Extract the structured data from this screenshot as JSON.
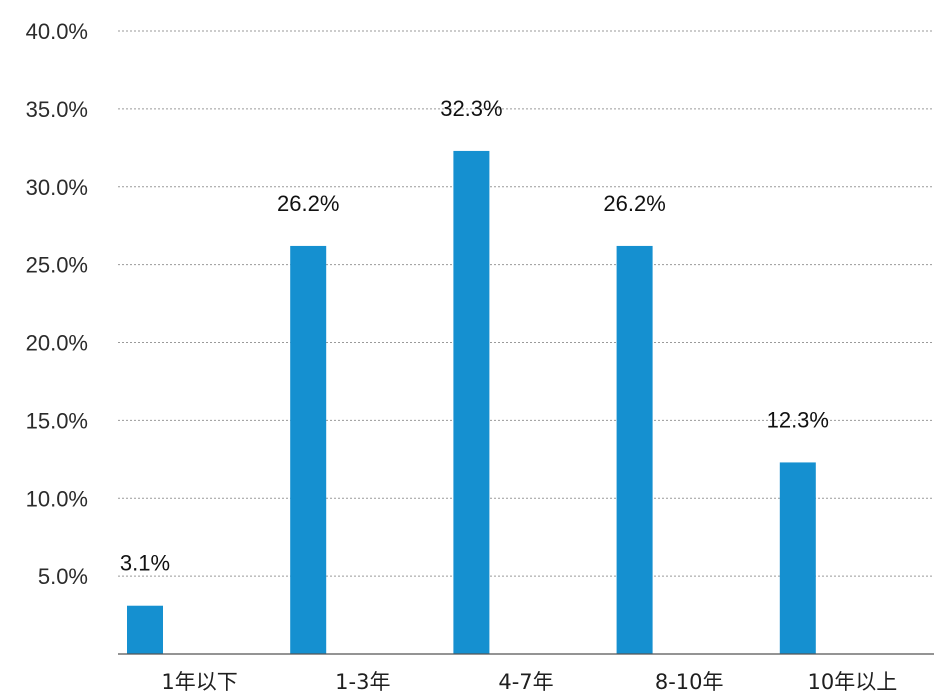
{
  "chart_data": {
    "type": "bar",
    "categories": [
      "1年以下",
      "1-3年",
      "4-7年",
      "8-10年",
      "10年以上"
    ],
    "values": [
      3.1,
      26.2,
      32.3,
      26.2,
      12.3
    ],
    "data_labels": [
      "3.1%",
      "26.2%",
      "32.3%",
      "26.2%",
      "12.3%"
    ],
    "title": "",
    "xlabel": "",
    "ylabel": "",
    "ylim": [
      0,
      40
    ],
    "yticks": [
      5,
      10,
      15,
      20,
      25,
      30,
      35,
      40
    ],
    "ytick_labels": [
      "5.0%",
      "10.0%",
      "15.0%",
      "20.0%",
      "25.0%",
      "30.0%",
      "35.0%",
      "40.0%"
    ],
    "grid": true,
    "bar_color": "#1590d0"
  }
}
